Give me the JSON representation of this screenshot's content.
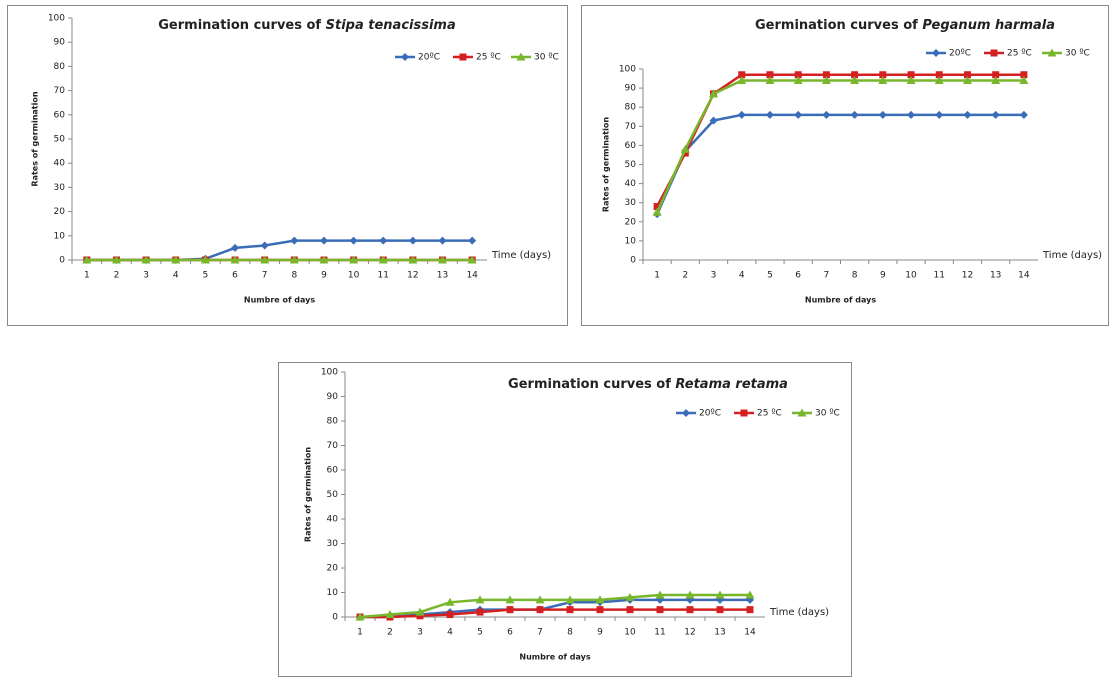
{
  "chart_data": [
    {
      "type": "line",
      "title": "Germination curves of",
      "species": "Stipa tenacissima",
      "x_label": "Numbre of days",
      "y_label": "Rates of germination",
      "annotation": "Time (days)",
      "x": [
        1,
        2,
        3,
        4,
        5,
        6,
        7,
        8,
        9,
        10,
        11,
        12,
        13,
        14
      ],
      "series": [
        {
          "name": "20ºC",
          "color": "#3b6cb7",
          "values": [
            0,
            0,
            0,
            0,
            0.5,
            5,
            6,
            8,
            8,
            8,
            8,
            8,
            8,
            8
          ]
        },
        {
          "name": "25 ºC",
          "color": "#d42020",
          "values": [
            0,
            0,
            0,
            0,
            0,
            0,
            0,
            0,
            0,
            0,
            0,
            0,
            0,
            0
          ]
        },
        {
          "name": "30 ºC",
          "color": "#78b62c",
          "values": [
            0,
            0,
            0,
            0,
            0,
            0,
            0,
            0,
            0,
            0,
            0,
            0,
            0,
            0
          ]
        }
      ],
      "ylim": [
        0,
        100
      ],
      "yticks": [
        0,
        10,
        20,
        30,
        40,
        50,
        60,
        70,
        80,
        90,
        100
      ],
      "grid": false
    },
    {
      "type": "line",
      "title": "Germination curves of",
      "species": "Peganum harmala",
      "x_label": "Numbre of days",
      "y_label": "Rates of germination",
      "annotation": "Time (days)",
      "x": [
        1,
        2,
        3,
        4,
        5,
        6,
        7,
        8,
        9,
        10,
        11,
        12,
        13,
        14
      ],
      "series": [
        {
          "name": "20ºC",
          "color": "#3b6cb7",
          "values": [
            24,
            57,
            73,
            76,
            76,
            76,
            76,
            76,
            76,
            76,
            76,
            76,
            76,
            76
          ]
        },
        {
          "name": "25 ºC",
          "color": "#d42020",
          "values": [
            28,
            56,
            87,
            97,
            97,
            97,
            97,
            97,
            97,
            97,
            97,
            97,
            97,
            97
          ]
        },
        {
          "name": "30 ºC",
          "color": "#78b62c",
          "values": [
            25,
            58,
            87,
            94,
            94,
            94,
            94,
            94,
            94,
            94,
            94,
            94,
            94,
            94
          ]
        }
      ],
      "ylim": [
        0,
        100
      ],
      "yticks": [
        0,
        10,
        20,
        30,
        40,
        50,
        60,
        70,
        80,
        90,
        100
      ],
      "grid": false
    },
    {
      "type": "line",
      "title": "Germination curves of",
      "species": "Retama retama",
      "x_label": "Numbre of days",
      "y_label": "Rates of germination",
      "annotation": "Time (days)",
      "x": [
        1,
        2,
        3,
        4,
        5,
        6,
        7,
        8,
        9,
        10,
        11,
        12,
        13,
        14
      ],
      "series": [
        {
          "name": "20ºC",
          "color": "#3b6cb7",
          "values": [
            0,
            0,
            1,
            2,
            3,
            3,
            3,
            6,
            6,
            7,
            7,
            7,
            7,
            7
          ]
        },
        {
          "name": "25 ºC",
          "color": "#d42020",
          "values": [
            0,
            0,
            0.5,
            1,
            2,
            3,
            3,
            3,
            3,
            3,
            3,
            3,
            3,
            3
          ]
        },
        {
          "name": "30 ºC",
          "color": "#78b62c",
          "values": [
            0,
            1,
            2,
            6,
            7,
            7,
            7,
            7,
            7,
            8,
            9,
            9,
            9,
            9
          ]
        }
      ],
      "ylim": [
        0,
        100
      ],
      "yticks": [
        0,
        10,
        20,
        30,
        40,
        50,
        60,
        70,
        80,
        90,
        100
      ],
      "grid": false
    }
  ]
}
